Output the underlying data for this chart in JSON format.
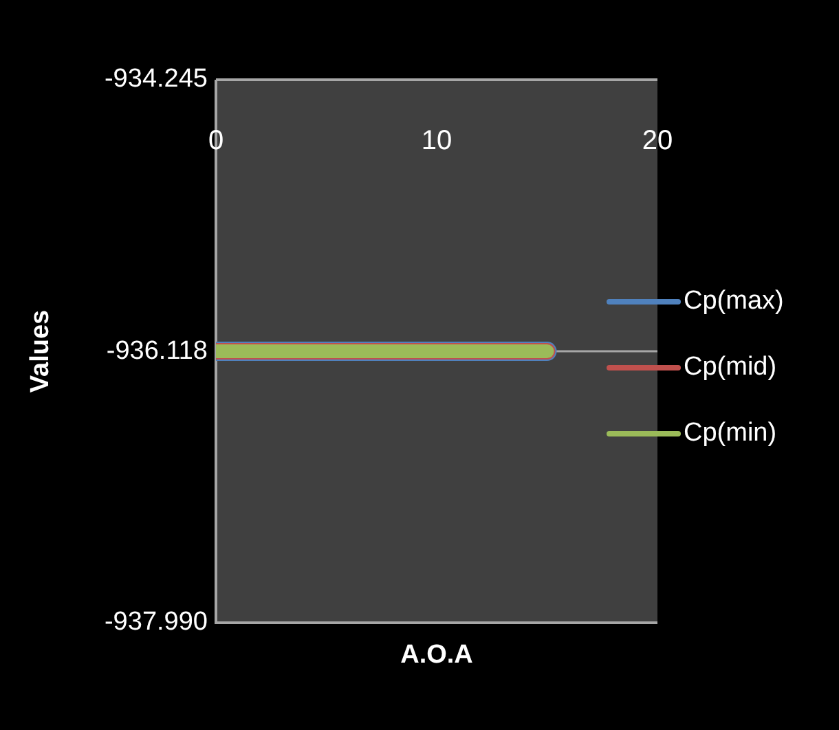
{
  "chart_data": {
    "type": "line",
    "xlabel": "A.O.A",
    "ylabel": "Values",
    "x": [
      0,
      15
    ],
    "series": [
      {
        "name": "Cp(max)",
        "color": "#4f81bd",
        "values": [
          -936.118,
          -936.118
        ]
      },
      {
        "name": "Cp(mid)",
        "color": "#c0504d",
        "values": [
          -936.118,
          -936.118
        ]
      },
      {
        "name": "Cp(min)",
        "color": "#9bbb59",
        "values": [
          -936.118,
          -936.118
        ]
      }
    ],
    "xlim": [
      0,
      20
    ],
    "xticks": [
      0,
      10,
      20
    ],
    "ylim": [
      -937.99,
      -934.245
    ],
    "yticks": [
      {
        "value": -937.99,
        "label": "-937.990"
      },
      -936.118,
      -934.245
    ],
    "ref_lines": [
      {
        "axis": "y",
        "value": -936.118,
        "color": "#a6a6a6"
      }
    ],
    "grid": false,
    "legend": "right",
    "marker": "none",
    "line_style": "solid"
  }
}
